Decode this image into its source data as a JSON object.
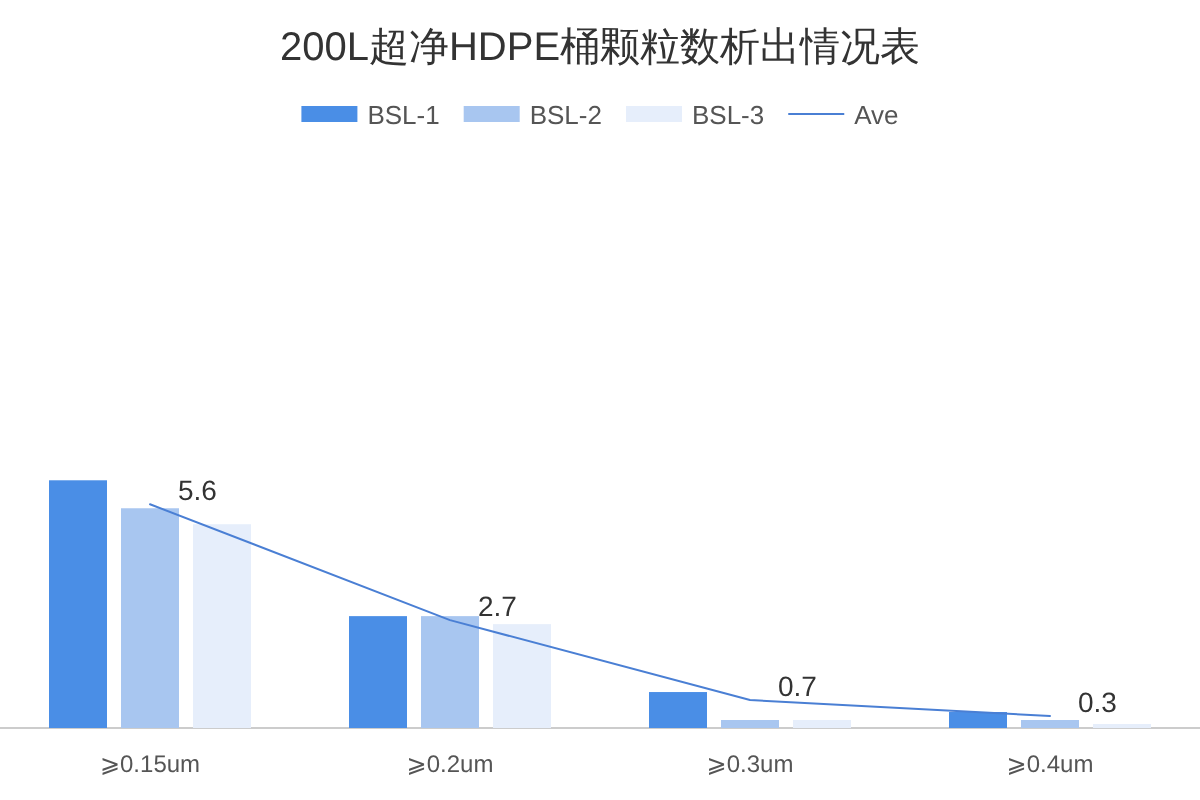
{
  "chart_data": {
    "type": "bar",
    "title": "200L超净HDPE桶颗粒数析出情况表",
    "categories": [
      "⩾0.15um",
      "⩾0.2um",
      "⩾0.3um",
      "⩾0.4um"
    ],
    "series": [
      {
        "name": "BSL-1",
        "color": "#4a8ee6",
        "values": [
          6.2,
          2.8,
          0.9,
          0.4
        ]
      },
      {
        "name": "BSL-2",
        "color": "#a8c6f0",
        "values": [
          5.5,
          2.8,
          0.2,
          0.2
        ]
      },
      {
        "name": "BSL-3",
        "color": "#e6eefb",
        "values": [
          5.1,
          2.6,
          0.2,
          0.1
        ]
      },
      {
        "name": "Ave",
        "type": "line",
        "color": "#4a7fd4",
        "values": [
          5.6,
          2.7,
          0.7,
          0.3
        ],
        "value_labels": [
          "5.6",
          "2.7",
          "0.7",
          "0.3"
        ]
      }
    ],
    "legend": "top"
  }
}
